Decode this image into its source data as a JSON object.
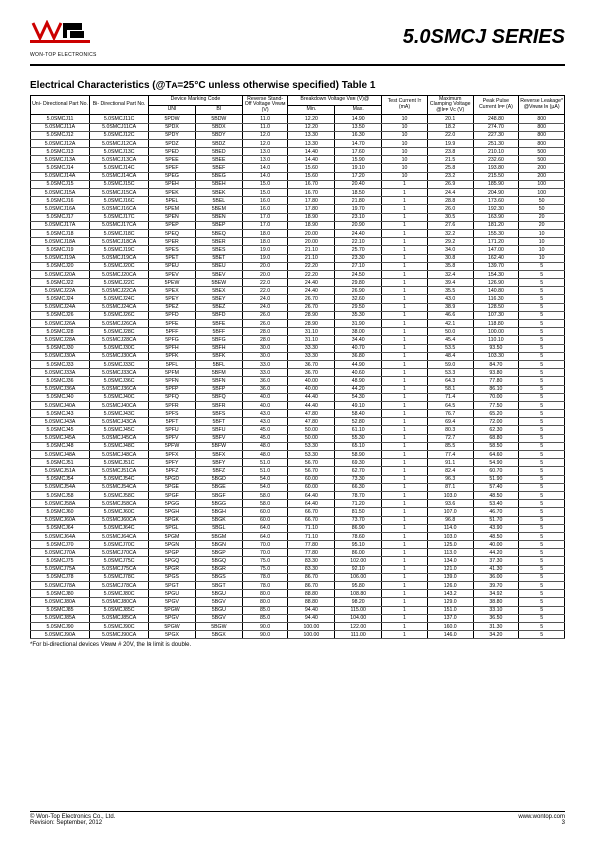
{
  "header": {
    "company": "WON-TOP ELECTRONICS",
    "series": "5.0SMCJ SERIES"
  },
  "table_title": "Electrical Characteristics (@Tᴀ=25°C unless otherwise specified) Table 1",
  "columns": {
    "uni": "Uni-\nDirectional\nPart No.",
    "bi": "Bi-\nDirectional\nPart No.",
    "mark": "Device\nMarking Code",
    "mark_uni": "UNI",
    "mark_bi": "BI",
    "vrwm": "Reverse\nStand-Off\nVoltage\nVʀᴡᴍ (V)",
    "vbr": "Breakdown Voltage\nVʙʀ (V)@",
    "vbr_min": "Min.",
    "vbr_max": "Max.",
    "it": "Test\nCurrent\nIᴛ (mA)",
    "vc": "Maximum\nClamping\nVoltage @Iᴘᴘ\nVᴄ (V)",
    "ipp": "Peak Pulse\nCurrent\nIᴘᴘ (A)",
    "ir": "Reverse\nLeakage*\n@Vʀᴡᴍ\nIʀ (µA)"
  },
  "groups": [
    [
      [
        "5.0SMCJ11",
        "5.0SMCJ11C",
        "5PDW",
        "5BDW",
        "11.0",
        "12.20",
        "14.90",
        "10",
        "20.1",
        "248.80",
        "800"
      ],
      [
        "5.0SMCJ11A",
        "5.0SMCJ11CA",
        "5PDX",
        "5BDX",
        "11.0",
        "12.20",
        "13.50",
        "10",
        "18.2",
        "274.70",
        "800"
      ],
      [
        "5.0SMCJ12",
        "5.0SMCJ12C",
        "5PDY",
        "5BDY",
        "12.0",
        "13.30",
        "16.30",
        "10",
        "22.0",
        "227.30",
        "800"
      ],
      [
        "5.0SMCJ12A",
        "5.0SMCJ12CA",
        "5PDZ",
        "5BDZ",
        "12.0",
        "13.30",
        "14.70",
        "10",
        "19.9",
        "251.30",
        "800"
      ]
    ],
    [
      [
        "5.0SMCJ13",
        "5.0SMCJ13C",
        "5PED",
        "5BED",
        "13.0",
        "14.40",
        "17.60",
        "10",
        "23.8",
        "210.10",
        "500"
      ],
      [
        "5.0SMCJ13A",
        "5.0SMCJ13CA",
        "5PEE",
        "5BEE",
        "13.0",
        "14.40",
        "15.90",
        "10",
        "21.5",
        "232.60",
        "500"
      ],
      [
        "5.0SMCJ14",
        "5.0SMCJ14C",
        "5PEF",
        "5BEF",
        "14.0",
        "15.60",
        "19.10",
        "10",
        "25.8",
        "193.80",
        "200"
      ],
      [
        "5.0SMCJ14A",
        "5.0SMCJ14CA",
        "5PEG",
        "5BEG",
        "14.0",
        "15.60",
        "17.20",
        "10",
        "23.2",
        "215.50",
        "200"
      ]
    ],
    [
      [
        "5.0SMCJ15",
        "5.0SMCJ15C",
        "5PEH",
        "5BEH",
        "15.0",
        "16.70",
        "20.40",
        "1",
        "26.9",
        "185.90",
        "100"
      ],
      [
        "5.0SMCJ15A",
        "5.0SMCJ15CA",
        "5PEK",
        "5BEK",
        "15.0",
        "16.70",
        "18.50",
        "1",
        "24.4",
        "204.90",
        "100"
      ],
      [
        "5.0SMCJ16",
        "5.0SMCJ16C",
        "5PEL",
        "5BEL",
        "16.0",
        "17.80",
        "21.80",
        "1",
        "28.8",
        "173.60",
        "50"
      ],
      [
        "5.0SMCJ16A",
        "5.0SMCJ16CA",
        "5PEM",
        "5BEM",
        "16.0",
        "17.80",
        "19.70",
        "1",
        "26.0",
        "192.30",
        "50"
      ]
    ],
    [
      [
        "5.0SMCJ17",
        "5.0SMCJ17C",
        "5PEN",
        "5BEN",
        "17.0",
        "18.90",
        "23.10",
        "1",
        "30.5",
        "163.90",
        "20"
      ],
      [
        "5.0SMCJ17A",
        "5.0SMCJ17CA",
        "5PEP",
        "5BEP",
        "17.0",
        "18.90",
        "20.90",
        "1",
        "27.6",
        "181.20",
        "20"
      ],
      [
        "5.0SMCJ18",
        "5.0SMCJ18C",
        "5PEQ",
        "5BEQ",
        "18.0",
        "20.00",
        "24.40",
        "1",
        "32.2",
        "155.30",
        "10"
      ],
      [
        "5.0SMCJ18A",
        "5.0SMCJ18CA",
        "5PER",
        "5BER",
        "18.0",
        "20.00",
        "22.10",
        "1",
        "29.2",
        "171.20",
        "10"
      ]
    ],
    [
      [
        "5.0SMCJ19",
        "5.0SMCJ19C",
        "5PES",
        "5BES",
        "19.0",
        "21.10",
        "25.70",
        "1",
        "34.0",
        "147.00",
        "10"
      ],
      [
        "5.0SMCJ19A",
        "5.0SMCJ19CA",
        "5PET",
        "5BET",
        "19.0",
        "21.10",
        "23.30",
        "1",
        "30.8",
        "162.40",
        "10"
      ],
      [
        "5.0SMCJ20",
        "5.0SMCJ20C",
        "5PEU",
        "5BEU",
        "20.0",
        "22.20",
        "27.10",
        "1",
        "35.8",
        "139.70",
        "5"
      ],
      [
        "5.0SMCJ20A",
        "5.0SMCJ20CA",
        "5PEV",
        "5BEV",
        "20.0",
        "22.20",
        "24.50",
        "1",
        "32.4",
        "154.30",
        "5"
      ]
    ],
    [
      [
        "5.0SMCJ22",
        "5.0SMCJ22C",
        "5PEW",
        "5BEW",
        "22.0",
        "24.40",
        "29.80",
        "1",
        "39.4",
        "126.90",
        "5"
      ],
      [
        "5.0SMCJ22A",
        "5.0SMCJ22CA",
        "5PEX",
        "5BEX",
        "22.0",
        "24.40",
        "26.90",
        "1",
        "35.5",
        "140.80",
        "5"
      ],
      [
        "5.0SMCJ24",
        "5.0SMCJ24C",
        "5PEY",
        "5BEY",
        "24.0",
        "26.70",
        "32.60",
        "1",
        "43.0",
        "116.30",
        "5"
      ],
      [
        "5.0SMCJ24A",
        "5.0SMCJ24CA",
        "5PEZ",
        "5BEZ",
        "24.0",
        "26.70",
        "29.50",
        "1",
        "38.9",
        "128.50",
        "5"
      ]
    ],
    [
      [
        "5.0SMCJ26",
        "5.0SMCJ26C",
        "5PFD",
        "5BFD",
        "26.0",
        "28.90",
        "35.30",
        "1",
        "46.6",
        "107.30",
        "5"
      ],
      [
        "5.0SMCJ26A",
        "5.0SMCJ26CA",
        "5PFE",
        "5BFE",
        "26.0",
        "28.90",
        "31.90",
        "1",
        "42.1",
        "118.80",
        "5"
      ],
      [
        "5.0SMCJ28",
        "5.0SMCJ28C",
        "5PFF",
        "5BFF",
        "28.0",
        "31.10",
        "38.00",
        "1",
        "50.0",
        "100.00",
        "5"
      ],
      [
        "5.0SMCJ28A",
        "5.0SMCJ28CA",
        "5PFG",
        "5BFG",
        "28.0",
        "31.10",
        "34.40",
        "1",
        "45.4",
        "110.10",
        "5"
      ]
    ],
    [
      [
        "5.0SMCJ30",
        "5.0SMCJ30C",
        "5PFH",
        "5BFH",
        "30.0",
        "33.30",
        "40.70",
        "1",
        "53.5",
        "93.50",
        "5"
      ],
      [
        "5.0SMCJ30A",
        "5.0SMCJ30CA",
        "5PFK",
        "5BFK",
        "30.0",
        "33.30",
        "36.80",
        "1",
        "48.4",
        "103.30",
        "5"
      ],
      [
        "5.0SMCJ33",
        "5.0SMCJ33C",
        "5PFL",
        "5BFL",
        "33.0",
        "36.70",
        "44.90",
        "1",
        "59.0",
        "84.70",
        "5"
      ],
      [
        "5.0SMCJ33A",
        "5.0SMCJ33CA",
        "5PFM",
        "5BFM",
        "33.0",
        "36.70",
        "40.60",
        "1",
        "53.3",
        "93.80",
        "5"
      ]
    ],
    [
      [
        "5.0SMCJ36",
        "5.0SMCJ36C",
        "5PFN",
        "5BFN",
        "36.0",
        "40.00",
        "48.90",
        "1",
        "64.3",
        "77.80",
        "5"
      ],
      [
        "5.0SMCJ36A",
        "5.0SMCJ36CA",
        "5PFP",
        "5BFP",
        "36.0",
        "40.00",
        "44.20",
        "1",
        "58.1",
        "86.10",
        "5"
      ],
      [
        "5.0SMCJ40",
        "5.0SMCJ40C",
        "5PFQ",
        "5BFQ",
        "40.0",
        "44.40",
        "54.30",
        "1",
        "71.4",
        "70.00",
        "5"
      ],
      [
        "5.0SMCJ40A",
        "5.0SMCJ40CA",
        "5PFR",
        "5BFR",
        "40.0",
        "44.40",
        "49.10",
        "1",
        "64.5",
        "77.50",
        "5"
      ]
    ],
    [
      [
        "5.0SMCJ43",
        "5.0SMCJ43C",
        "5PFS",
        "5BFS",
        "43.0",
        "47.80",
        "58.40",
        "1",
        "76.7",
        "65.20",
        "5"
      ],
      [
        "5.0SMCJ43A",
        "5.0SMCJ43CA",
        "5PFT",
        "5BFT",
        "43.0",
        "47.80",
        "52.80",
        "1",
        "69.4",
        "72.00",
        "5"
      ],
      [
        "5.0SMCJ45",
        "5.0SMCJ45C",
        "5PFU",
        "5BFU",
        "45.0",
        "50.00",
        "61.10",
        "1",
        "80.3",
        "62.30",
        "5"
      ],
      [
        "5.0SMCJ45A",
        "5.0SMCJ45CA",
        "5PFV",
        "5BFV",
        "45.0",
        "50.00",
        "55.30",
        "1",
        "72.7",
        "68.80",
        "5"
      ]
    ],
    [
      [
        "5.0SMCJ48",
        "5.0SMCJ48C",
        "5PFW",
        "5BFW",
        "48.0",
        "53.30",
        "65.10",
        "1",
        "85.5",
        "58.50",
        "5"
      ],
      [
        "5.0SMCJ48A",
        "5.0SMCJ48CA",
        "5PFX",
        "5BFX",
        "48.0",
        "53.30",
        "58.90",
        "1",
        "77.4",
        "64.60",
        "5"
      ],
      [
        "5.0SMCJ51",
        "5.0SMCJ51C",
        "5PFY",
        "5BFY",
        "51.0",
        "56.70",
        "69.30",
        "1",
        "91.1",
        "54.90",
        "5"
      ],
      [
        "5.0SMCJ51A",
        "5.0SMCJ51CA",
        "5PFZ",
        "5BFZ",
        "51.0",
        "56.70",
        "62.70",
        "1",
        "82.4",
        "60.70",
        "5"
      ]
    ],
    [
      [
        "5.0SMCJ54",
        "5.0SMCJ54C",
        "5PGD",
        "5BGD",
        "54.0",
        "60.00",
        "73.30",
        "1",
        "96.3",
        "51.90",
        "5"
      ],
      [
        "5.0SMCJ54A",
        "5.0SMCJ54CA",
        "5PGE",
        "5BGE",
        "54.0",
        "60.00",
        "66.30",
        "1",
        "87.1",
        "57.40",
        "5"
      ],
      [
        "5.0SMCJ58",
        "5.0SMCJ58C",
        "5PGF",
        "5BGF",
        "58.0",
        "64.40",
        "78.70",
        "1",
        "103.0",
        "48.50",
        "5"
      ],
      [
        "5.0SMCJ58A",
        "5.0SMCJ58CA",
        "5PGG",
        "5BGG",
        "58.0",
        "64.40",
        "71.20",
        "1",
        "93.6",
        "53.40",
        "5"
      ]
    ],
    [
      [
        "5.0SMCJ60",
        "5.0SMCJ60C",
        "5PGH",
        "5BGH",
        "60.0",
        "66.70",
        "81.50",
        "1",
        "107.0",
        "46.70",
        "5"
      ],
      [
        "5.0SMCJ60A",
        "5.0SMCJ60CA",
        "5PGK",
        "5BGK",
        "60.0",
        "66.70",
        "73.70",
        "1",
        "96.8",
        "51.70",
        "5"
      ],
      [
        "5.0SMCJ64",
        "5.0SMCJ64C",
        "5PGL",
        "5BGL",
        "64.0",
        "71.10",
        "86.90",
        "1",
        "114.0",
        "43.90",
        "5"
      ],
      [
        "5.0SMCJ64A",
        "5.0SMCJ64CA",
        "5PGM",
        "5BGM",
        "64.0",
        "71.10",
        "78.60",
        "1",
        "103.0",
        "48.50",
        "5"
      ]
    ],
    [
      [
        "5.0SMCJ70",
        "5.0SMCJ70C",
        "5PGN",
        "5BGN",
        "70.0",
        "77.80",
        "95.10",
        "1",
        "125.0",
        "40.00",
        "5"
      ],
      [
        "5.0SMCJ70A",
        "5.0SMCJ70CA",
        "5PGP",
        "5BGP",
        "70.0",
        "77.80",
        "86.00",
        "1",
        "113.0",
        "44.20",
        "5"
      ],
      [
        "5.0SMCJ75",
        "5.0SMCJ75C",
        "5PGQ",
        "5BGQ",
        "75.0",
        "83.30",
        "102.00",
        "1",
        "134.0",
        "37.30",
        "5"
      ],
      [
        "5.0SMCJ75A",
        "5.0SMCJ75CA",
        "5PGR",
        "5BGR",
        "75.0",
        "83.30",
        "92.10",
        "1",
        "121.0",
        "41.30",
        "5"
      ]
    ],
    [
      [
        "5.0SMCJ78",
        "5.0SMCJ78C",
        "5PGS",
        "5BGS",
        "78.0",
        "86.70",
        "106.00",
        "1",
        "139.0",
        "36.00",
        "5"
      ],
      [
        "5.0SMCJ78A",
        "5.0SMCJ78CA",
        "5PGT",
        "5BGT",
        "78.0",
        "86.70",
        "95.80",
        "1",
        "126.0",
        "39.70",
        "5"
      ],
      [
        "5.0SMCJ80",
        "5.0SMCJ80C",
        "5PGU",
        "5BGU",
        "80.0",
        "88.80",
        "108.80",
        "1",
        "143.2",
        "34.92",
        "5"
      ],
      [
        "5.0SMCJ80A",
        "5.0SMCJ80CA",
        "5PGV",
        "5BGV",
        "80.0",
        "88.80",
        "98.20",
        "1",
        "129.0",
        "38.80",
        "5"
      ]
    ],
    [
      [
        "5.0SMCJ85",
        "5.0SMCJ85C",
        "5PGW",
        "5BGU",
        "85.0",
        "94.40",
        "115.00",
        "1",
        "151.0",
        "33.10",
        "5"
      ],
      [
        "5.0SMCJ85A",
        "5.0SMCJ85CA",
        "5PGV",
        "5BGV",
        "85.0",
        "94.40",
        "104.00",
        "1",
        "137.0",
        "36.50",
        "5"
      ],
      [
        "5.0SMCJ90",
        "5.0SMCJ90C",
        "5PGW",
        "5BGW",
        "90.0",
        "100.00",
        "122.00",
        "1",
        "160.0",
        "31.30",
        "5"
      ],
      [
        "5.0SMCJ90A",
        "5.0SMCJ90CA",
        "5PGX",
        "5BGX",
        "90.0",
        "100.00",
        "111.00",
        "1",
        "146.0",
        "34.20",
        "5"
      ]
    ]
  ],
  "footnote": "*For bi-directional devices Vʀᴡᴍ # 20V, the Iʀ limit is double.",
  "footer": {
    "left1": "© Won-Top Electronics Co., Ltd.",
    "left2": "Revision: September, 2012",
    "right1": "www.wontop.com",
    "right2": "3"
  }
}
